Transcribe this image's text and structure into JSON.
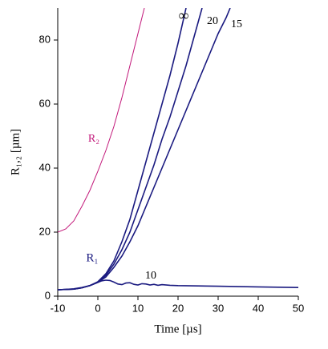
{
  "chart_data": {
    "type": "line",
    "x_label": "Time  [µs]",
    "y_label": "R₁,₂  [µm]",
    "xlim": [
      -10,
      50
    ],
    "ylim": [
      0,
      90
    ],
    "xticks": [
      -10,
      0,
      10,
      20,
      30,
      40,
      50
    ],
    "yticks": [
      0,
      20,
      40,
      60,
      80
    ],
    "series": [
      {
        "name": "R₂",
        "color": "#c2187a",
        "x": [
          -10,
          -8,
          -6,
          -4,
          -2,
          0,
          2,
          4,
          6,
          8,
          10,
          11.6
        ],
        "values": [
          20,
          21,
          23.5,
          28,
          33,
          39,
          45.5,
          53,
          62,
          72,
          82,
          90
        ]
      },
      {
        "name": "∞",
        "color": "#1a1a80",
        "x": [
          -10,
          -6,
          -4,
          -2,
          0,
          2,
          4,
          6,
          8,
          10,
          12,
          14,
          16,
          18,
          20,
          22
        ],
        "values": [
          2,
          2.2,
          2.6,
          3.3,
          4.5,
          7,
          11,
          17,
          24,
          33,
          42,
          51,
          60,
          69,
          79,
          90
        ]
      },
      {
        "name": "20",
        "color": "#1a1a80",
        "x": [
          -10,
          -6,
          -4,
          -2,
          0,
          2,
          4,
          6,
          8,
          10,
          12,
          14,
          16,
          18,
          20,
          22,
          24,
          26
        ],
        "values": [
          2,
          2.2,
          2.6,
          3.3,
          4.4,
          6.5,
          10,
          14.5,
          20,
          27,
          34,
          41,
          49,
          56,
          64,
          72,
          81,
          90
        ]
      },
      {
        "name": "15",
        "color": "#1a1a80",
        "x": [
          -10,
          -6,
          -4,
          -2,
          0,
          2,
          4,
          6,
          8,
          10,
          12,
          14,
          16,
          18,
          20,
          22,
          24,
          26,
          28,
          30,
          32,
          33
        ],
        "values": [
          2,
          2.2,
          2.6,
          3.3,
          4.3,
          6,
          9,
          12.5,
          17,
          22,
          28,
          34,
          40,
          46,
          52,
          58,
          64,
          70,
          76,
          82,
          87,
          90
        ]
      },
      {
        "name": "10",
        "color": "#1a1a80",
        "x": [
          -10,
          -8,
          -6,
          -4,
          -2,
          0,
          1,
          2,
          3,
          4,
          5,
          6,
          7,
          8,
          9,
          10,
          11,
          12,
          13,
          14,
          15,
          16,
          18,
          20,
          25,
          30,
          40,
          50
        ],
        "values": [
          2,
          2.1,
          2.3,
          2.7,
          3.3,
          4.3,
          4.8,
          5,
          4.9,
          4.4,
          3.8,
          3.6,
          4.1,
          4.2,
          3.7,
          3.5,
          3.9,
          3.8,
          3.5,
          3.7,
          3.4,
          3.6,
          3.4,
          3.3,
          3.2,
          3.1,
          2.9,
          2.7
        ]
      }
    ],
    "annotations": [
      {
        "text": "R₁",
        "color": "#1a1a80"
      }
    ]
  }
}
